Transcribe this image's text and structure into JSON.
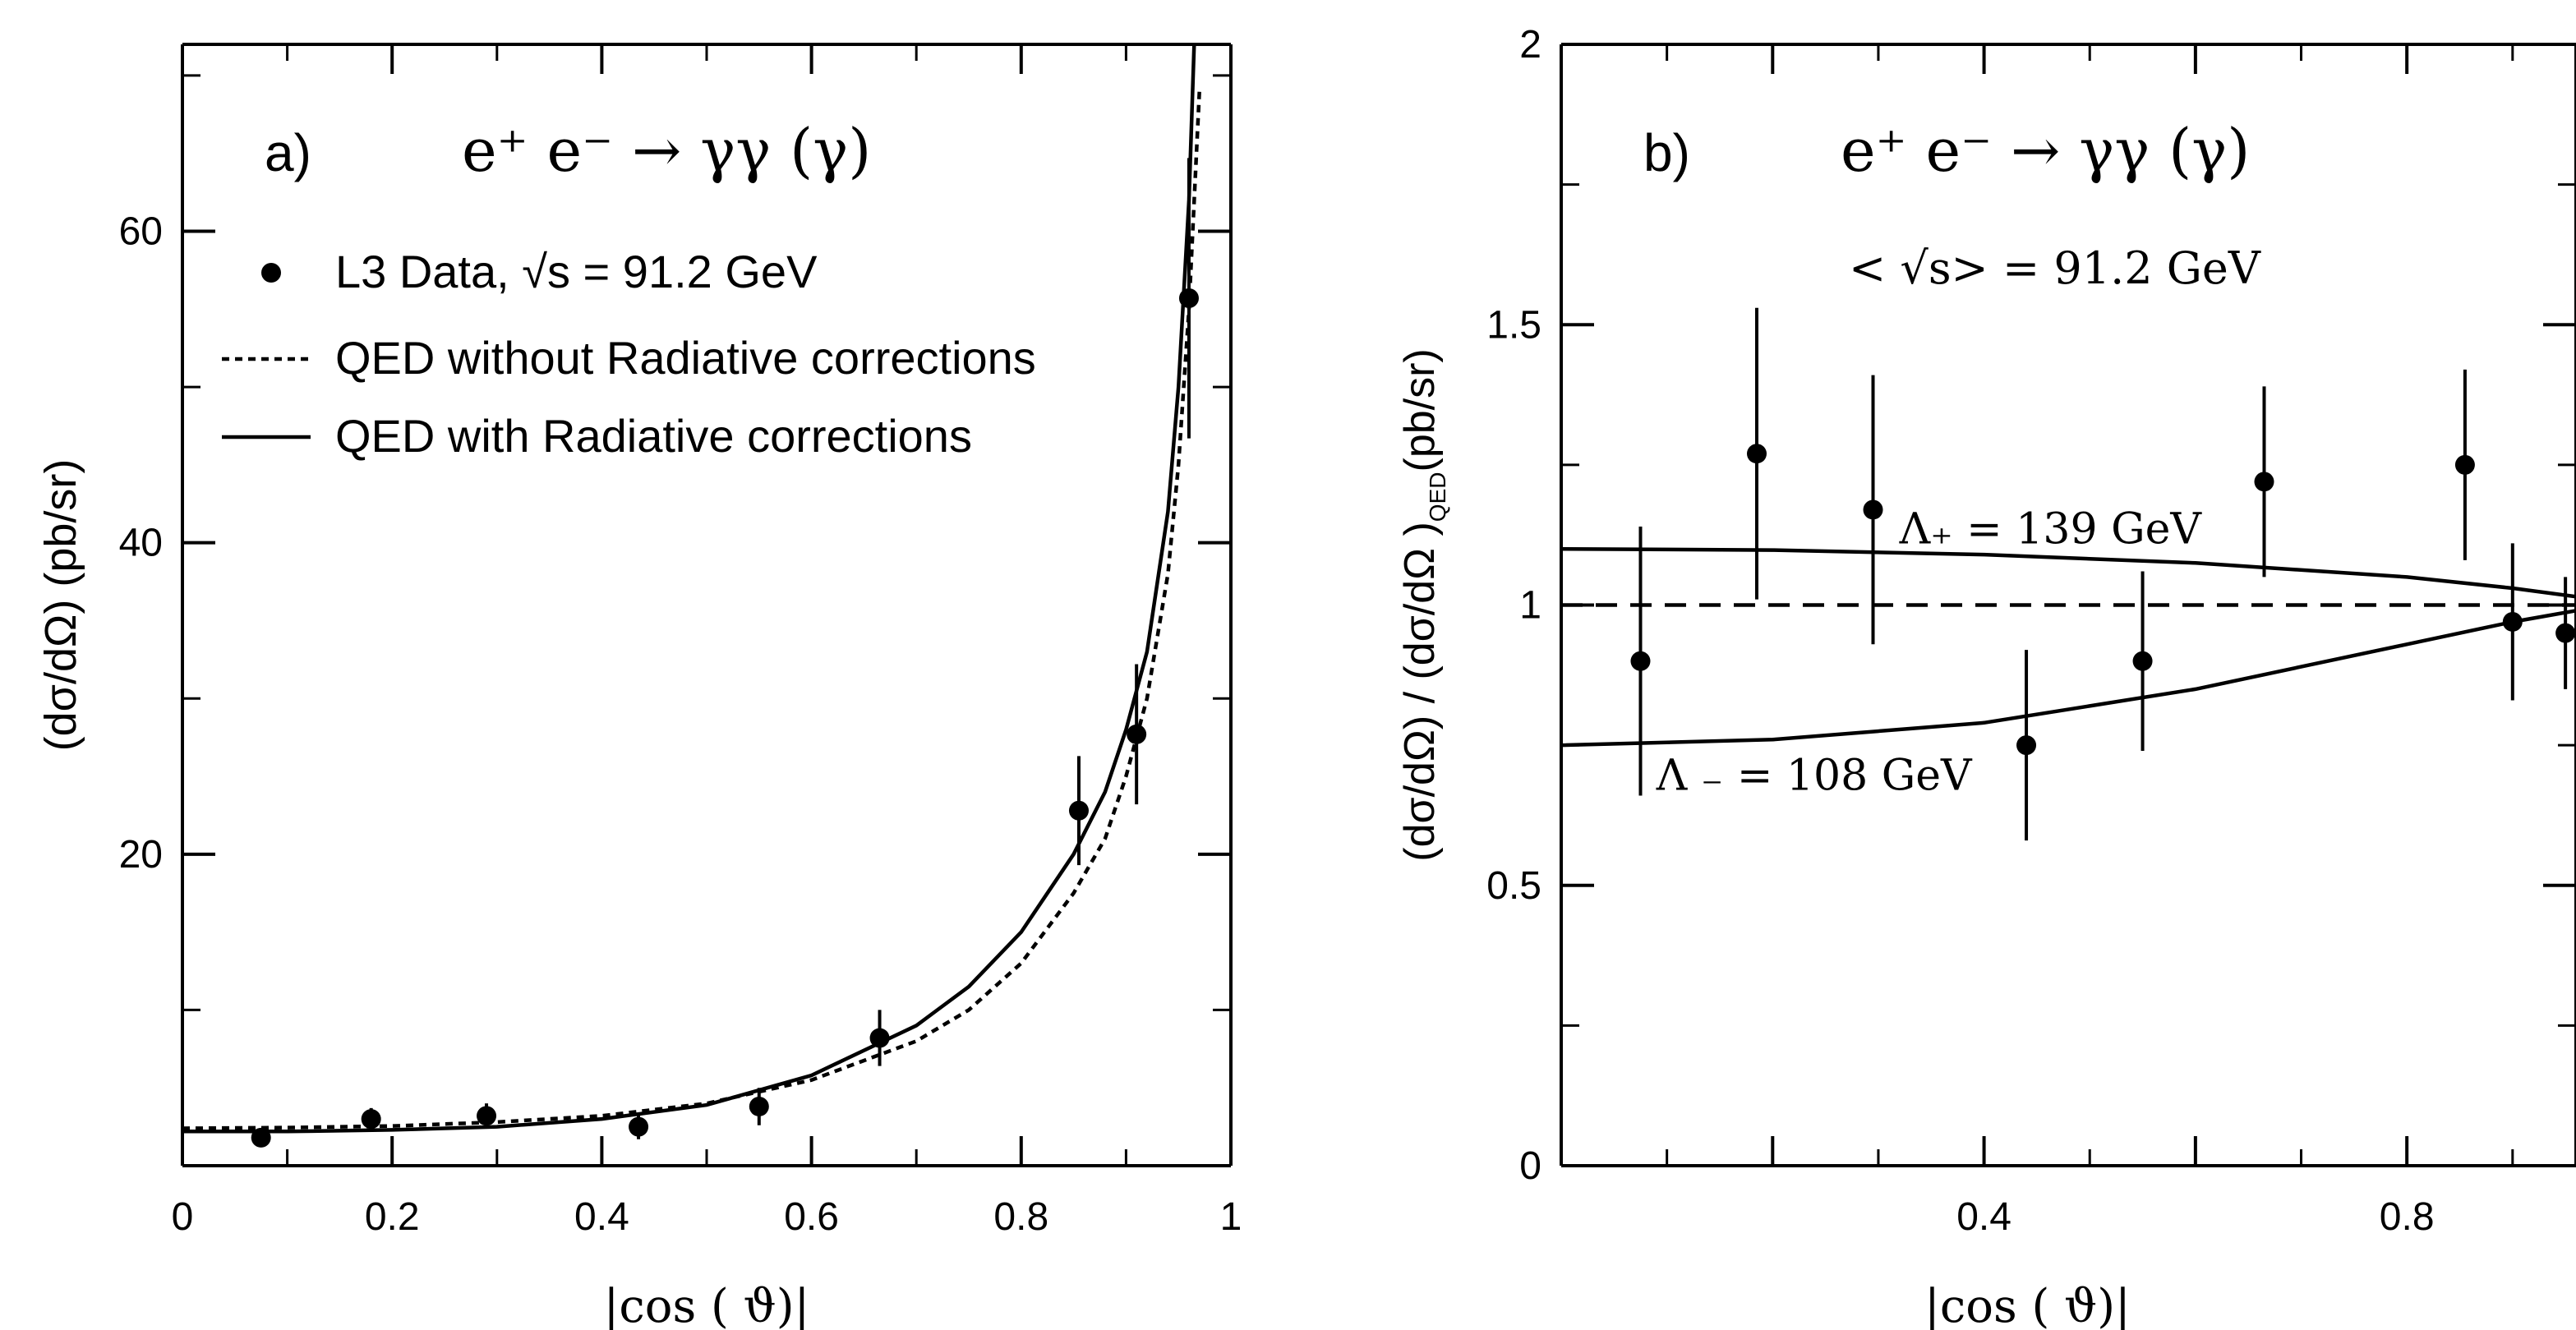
{
  "chart_data": [
    {
      "type": "scatter",
      "panel_label": "a)",
      "title": "e⁺ e⁻ → γγ (γ)",
      "xlabel": "|cos ( ϑ)|",
      "ylabel": "(dσ/dΩ) (pb/sr)",
      "xlim": [
        0,
        1
      ],
      "ylim": [
        0,
        72
      ],
      "x_ticks": [
        {
          "v": 0,
          "t": "0"
        },
        {
          "v": 0.2,
          "t": "0.2"
        },
        {
          "v": 0.4,
          "t": "0.4"
        },
        {
          "v": 0.6,
          "t": "0.6"
        },
        {
          "v": 0.8,
          "t": "0.8"
        },
        {
          "v": 1,
          "t": "1"
        }
      ],
      "y_ticks": [
        {
          "v": 0,
          "t": ""
        },
        {
          "v": 20,
          "t": "20"
        },
        {
          "v": 40,
          "t": "40"
        },
        {
          "v": 60,
          "t": "60"
        }
      ],
      "legend_position": "top-left",
      "legend": [
        {
          "style": "dot",
          "label": "L3 Data, √s = 91.2 GeV"
        },
        {
          "style": "dotted",
          "label": "QED without Radiative corrections"
        },
        {
          "style": "solid",
          "label": "QED with Radiative corrections"
        }
      ],
      "series": [
        {
          "name": "L3 Data, √s = 91.2 GeV",
          "style": "points",
          "points": [
            {
              "x": 0.075,
              "y": 1.8,
              "err": 0.6
            },
            {
              "x": 0.18,
              "y": 3.0,
              "err": 0.7
            },
            {
              "x": 0.29,
              "y": 3.2,
              "err": 0.8
            },
            {
              "x": 0.435,
              "y": 2.5,
              "err": 0.8
            },
            {
              "x": 0.55,
              "y": 3.8,
              "err": 1.2
            },
            {
              "x": 0.665,
              "y": 8.2,
              "err": 1.8
            },
            {
              "x": 0.855,
              "y": 22.8,
              "err": 3.5
            },
            {
              "x": 0.91,
              "y": 27.7,
              "err": 4.5
            },
            {
              "x": 0.96,
              "y": 55.7,
              "err": 9.0
            }
          ]
        },
        {
          "name": "QED without Radiative corrections",
          "style": "dotted",
          "x": [
            0,
            0.1,
            0.2,
            0.3,
            0.4,
            0.5,
            0.6,
            0.7,
            0.75,
            0.8,
            0.85,
            0.88,
            0.9,
            0.92,
            0.94,
            0.95,
            0.96,
            0.97
          ],
          "y": [
            2.4,
            2.45,
            2.55,
            2.8,
            3.2,
            4.0,
            5.5,
            8.0,
            10.0,
            13.0,
            17.5,
            21.0,
            25.0,
            30.0,
            38.0,
            45.0,
            55.0,
            69.0
          ]
        },
        {
          "name": "QED with Radiative corrections",
          "style": "solid",
          "x": [
            0,
            0.1,
            0.2,
            0.3,
            0.4,
            0.5,
            0.6,
            0.7,
            0.75,
            0.8,
            0.85,
            0.88,
            0.9,
            0.92,
            0.94,
            0.95,
            0.96,
            0.965
          ],
          "y": [
            2.2,
            2.2,
            2.3,
            2.5,
            3.0,
            3.9,
            5.8,
            9.0,
            11.5,
            15.0,
            20.0,
            24.0,
            28.0,
            33.0,
            42.0,
            50.0,
            62.0,
            72.0
          ]
        }
      ]
    },
    {
      "type": "scatter",
      "panel_label": "b)",
      "title": "e⁺ e⁻ → γγ (γ)",
      "subtitle": "< √s> = 91.2 GeV",
      "xlabel": "|cos ( ϑ)|",
      "ylabel": "(dσ/dΩ) / (dσ/dΩ)_QED (pb/sr)",
      "ylabel_main": "(dσ/dΩ) / (dσ/dΩ )",
      "ylabel_sub": "QED",
      "ylabel_tail": "(pb/sr)",
      "xlim": [
        0,
        0.96
      ],
      "ylim": [
        0,
        2
      ],
      "x_ticks": [
        {
          "v": 0,
          "t": ""
        },
        {
          "v": 0.2,
          "t": ""
        },
        {
          "v": 0.4,
          "t": "0.4"
        },
        {
          "v": 0.6,
          "t": ""
        },
        {
          "v": 0.8,
          "t": "0.8"
        }
      ],
      "y_ticks": [
        {
          "v": 0,
          "t": "0"
        },
        {
          "v": 0.5,
          "t": "0.5"
        },
        {
          "v": 1,
          "t": "1"
        },
        {
          "v": 1.5,
          "t": "1.5"
        },
        {
          "v": 2,
          "t": "2"
        }
      ],
      "annotations": [
        {
          "text": "Λ₊ = 139 GeV",
          "x": 0.32,
          "y": 1.11
        },
        {
          "text": "Λ ₋ = 108 GeV",
          "x": 0.09,
          "y": 0.67
        }
      ],
      "series": [
        {
          "name": "data",
          "style": "points",
          "points": [
            {
              "x": 0.075,
              "y": 0.9,
              "err": 0.24
            },
            {
              "x": 0.185,
              "y": 1.27,
              "err": 0.26
            },
            {
              "x": 0.295,
              "y": 1.17,
              "err": 0.24
            },
            {
              "x": 0.44,
              "y": 0.75,
              "err": 0.17
            },
            {
              "x": 0.55,
              "y": 0.9,
              "err": 0.16
            },
            {
              "x": 0.665,
              "y": 1.22,
              "err": 0.17
            },
            {
              "x": 0.855,
              "y": 1.25,
              "err": 0.17
            },
            {
              "x": 0.9,
              "y": 0.97,
              "err": 0.14
            },
            {
              "x": 0.95,
              "y": 0.95,
              "err": 0.1
            }
          ]
        },
        {
          "name": "QED",
          "style": "dashed",
          "x": [
            0,
            0.96
          ],
          "y": [
            1.0,
            1.0
          ]
        },
        {
          "name": "Λ₊ = 139 GeV",
          "style": "solid",
          "x": [
            0,
            0.2,
            0.4,
            0.6,
            0.8,
            0.9,
            0.96
          ],
          "y": [
            1.1,
            1.098,
            1.09,
            1.075,
            1.05,
            1.03,
            1.015
          ]
        },
        {
          "name": "Λ ₋ = 108 GeV",
          "style": "solid",
          "x": [
            0,
            0.2,
            0.4,
            0.5,
            0.6,
            0.7,
            0.8,
            0.9,
            0.96
          ],
          "y": [
            0.75,
            0.76,
            0.79,
            0.82,
            0.85,
            0.89,
            0.93,
            0.97,
            0.99
          ]
        }
      ]
    }
  ]
}
